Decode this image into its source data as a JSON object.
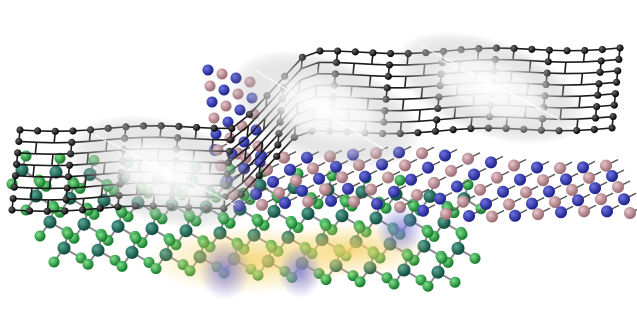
{
  "image": {
    "colors": {
      "background": "#ffffff",
      "graphene_atom": "#111111",
      "graphene_bond": "#1a1a1a",
      "boron_atom": "#2a2f9e",
      "nitrogen_atom": "#b98a92",
      "fluorine_atom": "#1f9a3a",
      "carbon_green_atom": "#1f6b5a",
      "bond_grey": "#8a8a8a",
      "glow_white": "#ffffff",
      "glow_yellow": "#f3c94a",
      "glow_blue": "#6b6fd8"
    },
    "layers": [
      {
        "name": "graphene-sheet"
      },
      {
        "name": "hexagonal-boron-nitride-layer"
      },
      {
        "name": "fluorinated-substrate-layer"
      }
    ]
  }
}
